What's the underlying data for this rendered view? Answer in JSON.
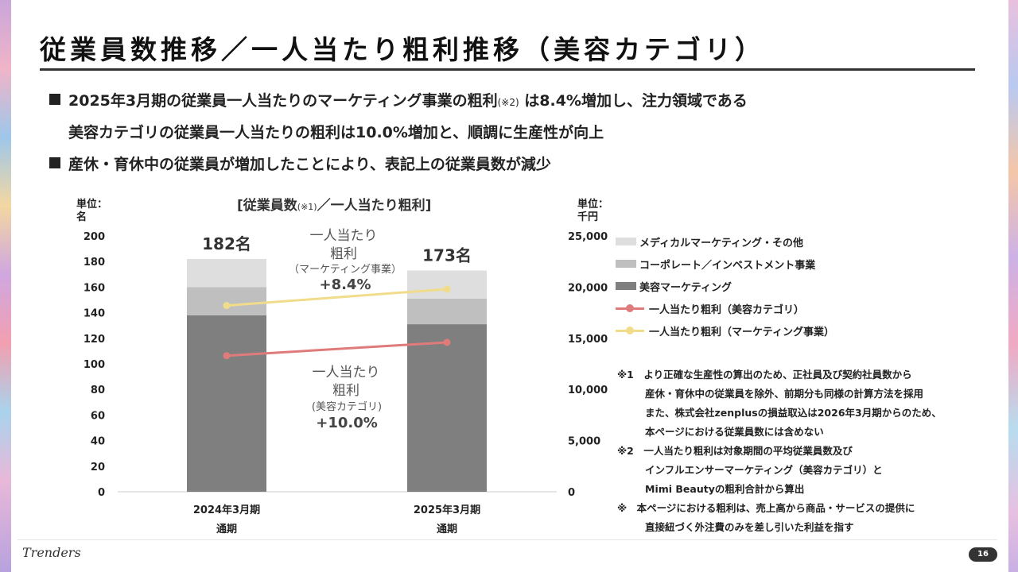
{
  "title": "従業員数推移／一人当たり粗利推移（美容カテゴリ）",
  "bullets": [
    {
      "text_a": "2025年3月期の従業員一人当たりのマーケティング事業の粗利",
      "note": "(※2)",
      "text_b": " は8.4%増加し、注力領域である"
    },
    {
      "text": "美容カテゴリの従業員一人当たりの粗利は10.0%増加と、順調に生産性が向上"
    },
    {
      "text": "産休・育休中の従業員が増加したことにより、表記上の従業員数が減少"
    }
  ],
  "chart_heading": {
    "text_a": "[従業員数",
    "note": "(※1)",
    "text_b": "／一人当たり粗利]"
  },
  "left_axis": {
    "unit_line1": "単位：",
    "unit_line2": "名"
  },
  "right_axis": {
    "unit_line1": "単位：",
    "unit_line2": "千円"
  },
  "annotations": {
    "marketing": {
      "line1": "一人当たり",
      "line2": "粗利",
      "line3": "（マーケティング事業）",
      "pct": "+8.4%"
    },
    "beauty": {
      "line1": "一人当たり",
      "line2": "粗利",
      "line3": "(美容カテゴリ)",
      "pct": "+10.0%"
    }
  },
  "chart_data": {
    "type": "bar",
    "stacked": true,
    "categories": [
      [
        "2024年3月期",
        "通期"
      ],
      [
        "2025年3月期",
        "通期"
      ]
    ],
    "totals": [
      "182名",
      "173名"
    ],
    "series": [
      {
        "name": "美容マーケティング",
        "values": [
          138,
          131
        ],
        "color": "#7f7f7f"
      },
      {
        "name": "コーポレート／インベストメント事業",
        "values": [
          22,
          20
        ],
        "color": "#bfbfbf"
      },
      {
        "name": "メディカルマーケティング・その他",
        "values": [
          22,
          22
        ],
        "color": "#dedede"
      }
    ],
    "line_series": [
      {
        "name": "一人当たり粗利（美容カテゴリ）",
        "values": [
          13300,
          14600
        ],
        "color": "#e07b7b",
        "axis": "right"
      },
      {
        "name": "一人当たり粗利（マーケティング事業）",
        "values": [
          18200,
          19800
        ],
        "color": "#f0dc8a",
        "axis": "right"
      }
    ],
    "ylim_left": [
      0,
      200
    ],
    "yticks_left": [
      "200",
      "180",
      "160",
      "140",
      "120",
      "100",
      "80",
      "60",
      "40",
      "20",
      "0"
    ],
    "ylim_right": [
      0,
      25000
    ],
    "yticks_right": [
      "25,000",
      "20,000",
      "15,000",
      "10,000",
      "5,000",
      "0"
    ]
  },
  "legend": [
    {
      "label": "メディカルマーケティング・その他",
      "kind": "bar",
      "color": "#dedede"
    },
    {
      "label": "コーポレート／インベストメント事業",
      "kind": "bar",
      "color": "#bfbfbf"
    },
    {
      "label": "美容マーケティング",
      "kind": "bar",
      "color": "#7f7f7f"
    },
    {
      "label": "一人当たり粗利（美容カテゴリ）",
      "kind": "line",
      "color": "#e07b7b"
    },
    {
      "label": "一人当たり粗利（マーケティング事業）",
      "kind": "line",
      "color": "#f0dc8a"
    }
  ],
  "notes": [
    "※1　より正確な生産性の算出のため、正社員及び契約社員数から",
    "産休・育休中の従業員を除外、前期分も同様の計算方法を採用",
    "また、株式会社zenplusの損益取込は2026年3月期からのため、",
    "本ページにおける従業員数には含めない",
    "※2　一人当たり粗利は対象期間の平均従業員数及び",
    "インフルエンサーマーケティング（美容カテゴリ）と",
    "Mimi Beautyの粗利合計から算出",
    "※　本ページにおける粗利は、売上高から商品・サービスの提供に",
    "直接紐づく外注費のみを差し引いた利益を指す"
  ],
  "footer": {
    "logo": "Trenders",
    "page": "16"
  }
}
